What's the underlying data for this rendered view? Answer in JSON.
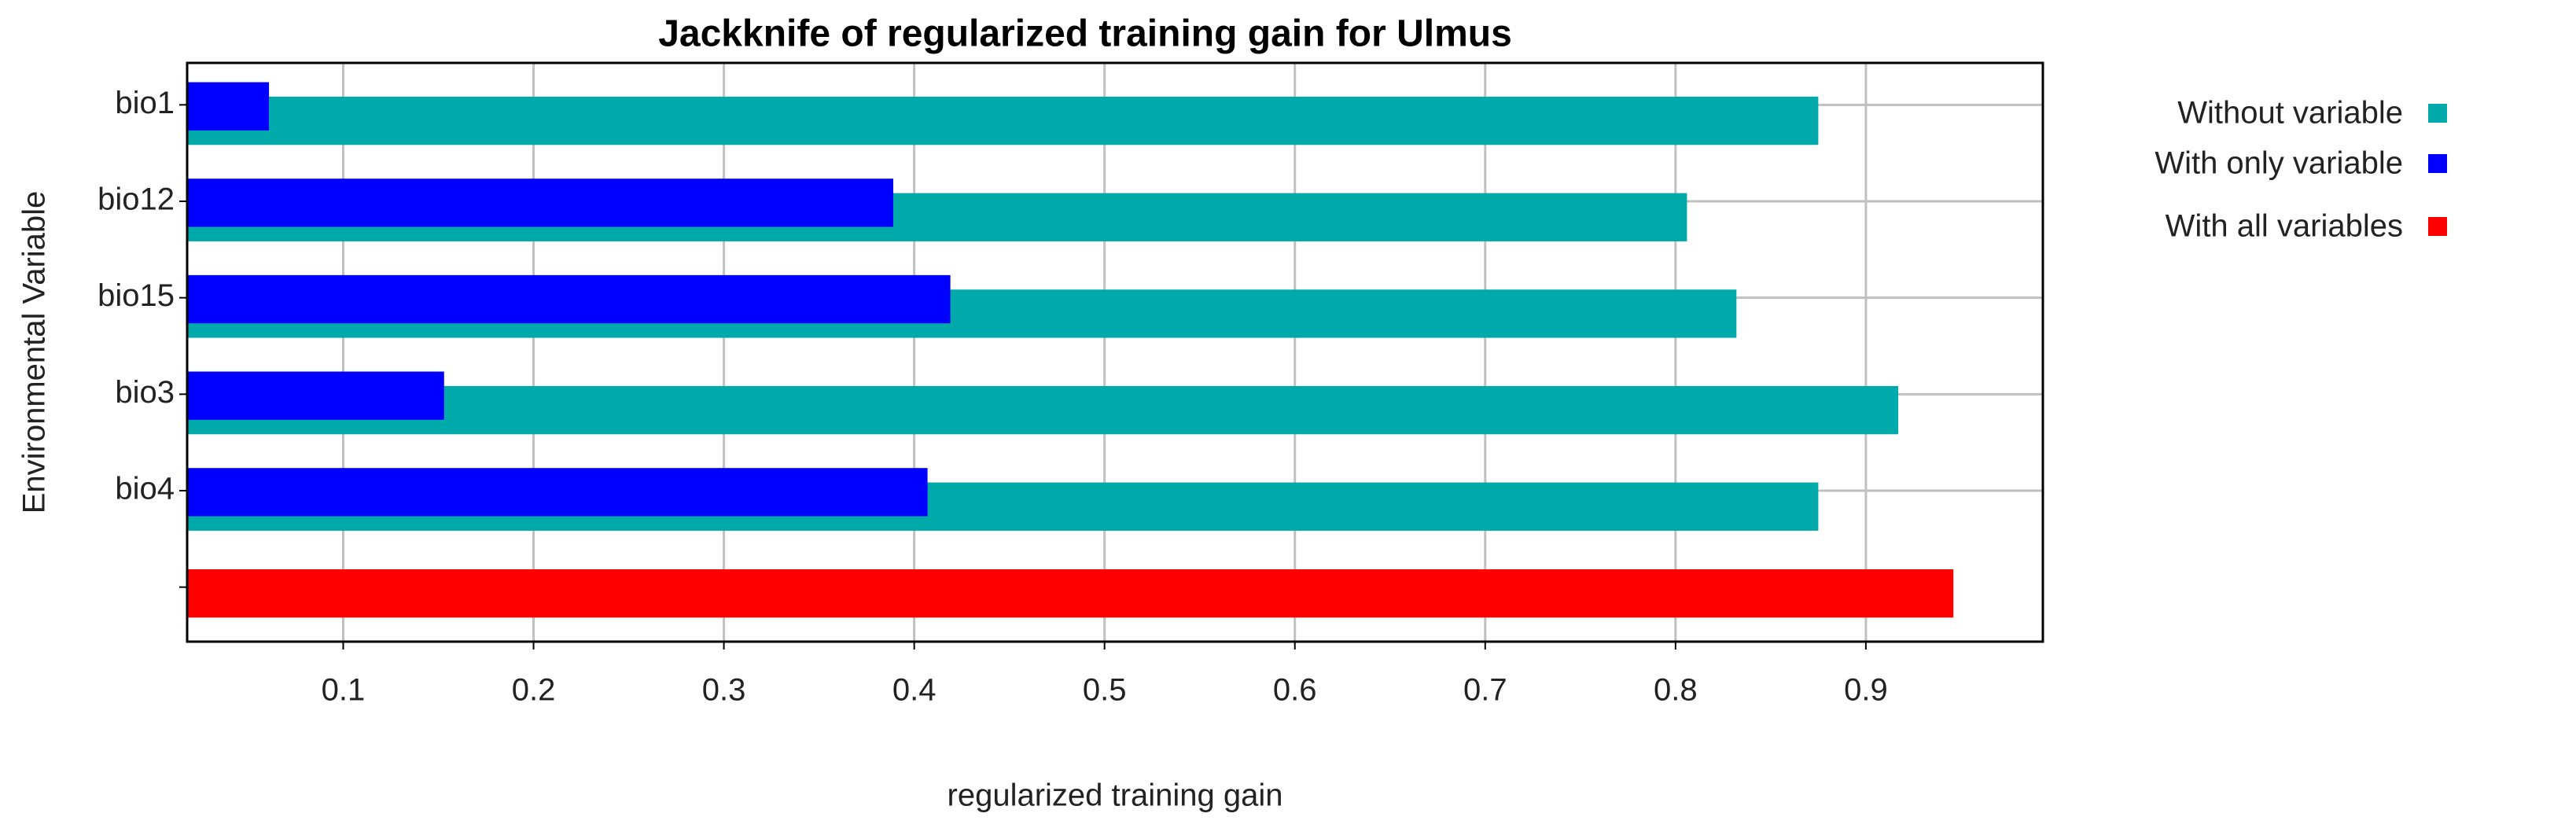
{
  "chart_data": {
    "type": "barh",
    "title": "Jackknife of regularized training gain for Ulmus",
    "xlabel": "regularized training gain",
    "ylabel": "Environmental Variable",
    "categories": [
      "bio1",
      "bio12",
      "bio15",
      "bio3",
      "bio4",
      null
    ],
    "series": [
      {
        "name": "Without variable",
        "color": "#00aaaa",
        "values": [
          0.875,
          0.806,
          0.832,
          0.917,
          0.875,
          null
        ]
      },
      {
        "name": "With only variable",
        "color": "#0000ff",
        "values": [
          0.061,
          0.389,
          0.419,
          0.153,
          0.407,
          null
        ]
      },
      {
        "name": "With all variables",
        "color": "#ff0000",
        "values": [
          null,
          null,
          null,
          null,
          null,
          0.946
        ]
      }
    ],
    "xlim": [
      0.018,
      0.993
    ],
    "xticks": [
      0.1,
      0.2,
      0.3,
      0.4,
      0.5,
      0.6,
      0.7,
      0.8,
      0.9
    ],
    "grid": true,
    "legend": "right"
  }
}
